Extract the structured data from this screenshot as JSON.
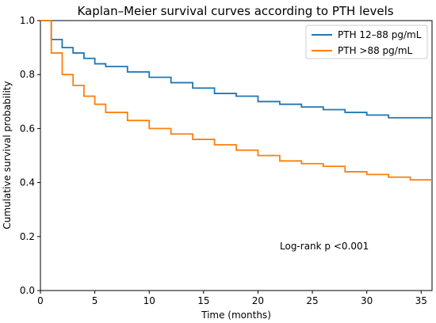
{
  "chart_data": {
    "type": "line",
    "subtype": "step",
    "title": "Kaplan–Meier survival curves according to PTH levels",
    "xlabel": "Time (months)",
    "ylabel": "Cumulative survival probability",
    "xlim": [
      0,
      36
    ],
    "ylim": [
      0,
      1.0
    ],
    "xticks": [
      0,
      5,
      10,
      15,
      20,
      25,
      30,
      35
    ],
    "xtick_labels": [
      "0",
      "5",
      "10",
      "15",
      "20",
      "25",
      "30",
      "35"
    ],
    "yticks": [
      0,
      0.2,
      0.4,
      0.6,
      0.8,
      1.0
    ],
    "ytick_labels": [
      "0.0",
      "0.2",
      "0.4",
      "0.6",
      "0.8",
      "1.0"
    ],
    "grid": false,
    "legend_position": "top-right",
    "annotation": "Log-rank p <0.001",
    "series": [
      {
        "name": "PTH 12–88 pg/mL",
        "color": "#1f77b4",
        "x": [
          1,
          2,
          3,
          4,
          5,
          6,
          8,
          10,
          12,
          14,
          16,
          18,
          20,
          22,
          24,
          26,
          28,
          30,
          32,
          36
        ],
        "y": [
          0.93,
          0.9,
          0.88,
          0.86,
          0.84,
          0.83,
          0.81,
          0.79,
          0.77,
          0.75,
          0.73,
          0.72,
          0.7,
          0.69,
          0.68,
          0.67,
          0.66,
          0.65,
          0.64,
          0.64
        ]
      },
      {
        "name": "PTH >88 pg/mL",
        "color": "#ff7f0e",
        "x": [
          1,
          2,
          3,
          4,
          5,
          6,
          8,
          10,
          12,
          14,
          16,
          18,
          20,
          22,
          24,
          26,
          28,
          30,
          32,
          34,
          36
        ],
        "y": [
          0.88,
          0.8,
          0.76,
          0.72,
          0.69,
          0.66,
          0.63,
          0.6,
          0.58,
          0.56,
          0.54,
          0.52,
          0.5,
          0.48,
          0.47,
          0.46,
          0.44,
          0.43,
          0.42,
          0.41,
          0.41
        ]
      }
    ]
  }
}
